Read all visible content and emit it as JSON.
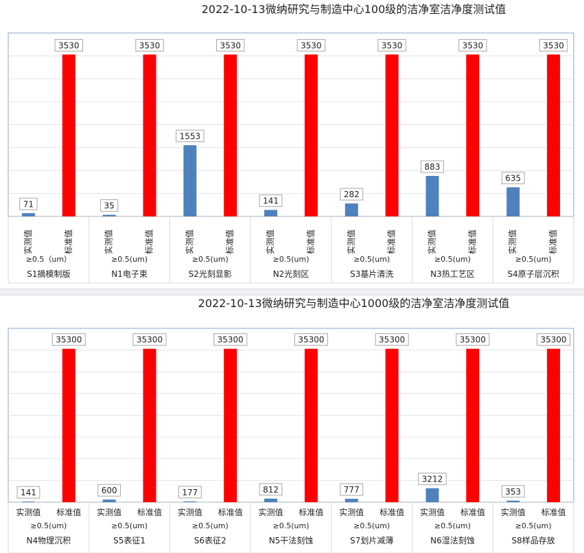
{
  "chart_data": [
    {
      "type": "bar",
      "title": "2022-10-13微纳研究与制造中心100级的洁净室洁净度测试值",
      "ylim": [
        0,
        4000
      ],
      "grid": true,
      "colors": {
        "actual": "#4f81bd",
        "standard": "#ff0000"
      },
      "groups": [
        {
          "name": "S1摘模制版",
          "size": "≥0.5（um）",
          "actual_label": "实测值",
          "standard_label": "标准值",
          "actual": 71,
          "standard": 3530
        },
        {
          "name": "N1电子束",
          "size": "≥0.5(um)",
          "actual_label": "实测值",
          "standard_label": "标准值",
          "actual": 35,
          "standard": 3530
        },
        {
          "name": "S2光刻显影",
          "size": "≥0.5(um)",
          "actual_label": "实测值",
          "standard_label": "标准值",
          "actual": 1553,
          "standard": 3530
        },
        {
          "name": "N2光刻区",
          "size": "≥0.5(um)",
          "actual_label": "实测值",
          "standard_label": "标准值",
          "actual": 141,
          "standard": 3530
        },
        {
          "name": "S3基片清洗",
          "size": "≥0.5(um)",
          "actual_label": "实测值",
          "standard_label": "标准值",
          "actual": 282,
          "standard": 3530
        },
        {
          "name": "N3热工艺区",
          "size": "≥0.5(um)",
          "actual_label": "实测值",
          "standard_label": "标准值",
          "actual": 883,
          "standard": 3530
        },
        {
          "name": "S4原子层沉积",
          "size": "≥0.5(um)",
          "actual_label": "实测值",
          "standard_label": "标准值",
          "actual": 635,
          "standard": 3530
        }
      ]
    },
    {
      "type": "bar",
      "title": "2022-10-13微纳研究与制造中心1000级的洁净室洁净度测试值",
      "ylim": [
        0,
        40000
      ],
      "grid": true,
      "colors": {
        "actual": "#4f81bd",
        "standard": "#ff0000"
      },
      "groups": [
        {
          "name": "N4物理沉积",
          "size": "≥0.5(um)",
          "actual_label": "实测值",
          "standard_label": "标准值",
          "actual": 141,
          "standard": 35300
        },
        {
          "name": "S5表征1",
          "size": "≥0.5(um)",
          "actual_label": "实测值",
          "standard_label": "标准值",
          "actual": 600,
          "standard": 35300
        },
        {
          "name": "S6表征2",
          "size": "≥0.5(um)",
          "actual_label": "实测值",
          "standard_label": "标准值",
          "actual": 177,
          "standard": 35300
        },
        {
          "name": "N5干法刻蚀",
          "size": "≥0.5(um)",
          "actual_label": "实测值",
          "standard_label": "标准值",
          "actual": 812,
          "standard": 35300
        },
        {
          "name": "S7划片减薄",
          "size": "≥0.5(um)",
          "actual_label": "实测值",
          "standard_label": "标准值",
          "actual": 777,
          "standard": 35300
        },
        {
          "name": "N6湿法刻蚀",
          "size": "≥0.5(um)",
          "actual_label": "实测值",
          "standard_label": "标准值",
          "actual": 3212,
          "standard": 35300
        },
        {
          "name": "S8样品存放",
          "size": "≥0.5(um)",
          "actual_label": "实测值",
          "standard_label": "标准值",
          "actual": 353,
          "standard": 35300
        }
      ]
    }
  ]
}
